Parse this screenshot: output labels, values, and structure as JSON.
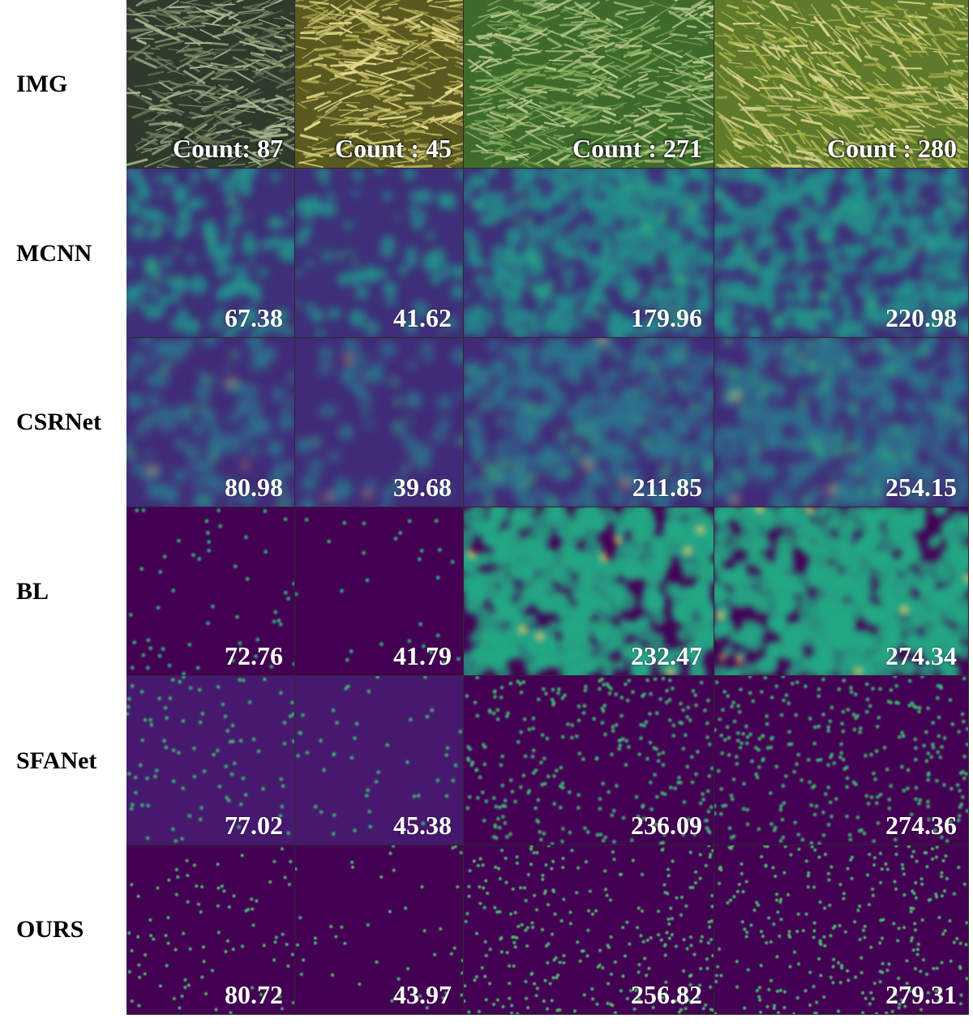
{
  "figure": {
    "columns": 4,
    "rows": [
      {
        "label": "IMG",
        "kind": "photo",
        "values": [
          "Count: 87",
          "Count : 45",
          "Count : 271",
          "Count : 280"
        ]
      },
      {
        "label": "MCNN",
        "kind": "density-blurry",
        "values": [
          "67.38",
          "41.62",
          "179.96",
          "220.98"
        ]
      },
      {
        "label": "CSRNet",
        "kind": "density-blob",
        "values": [
          "80.98",
          "39.68",
          "211.85",
          "254.15"
        ]
      },
      {
        "label": "BL",
        "kind": "density-mixed",
        "values": [
          "72.76",
          "41.79",
          "232.47",
          "274.34"
        ]
      },
      {
        "label": "SFANet",
        "kind": "density-points",
        "values": [
          "77.02",
          "45.38",
          "236.09",
          "274.36"
        ]
      },
      {
        "label": "OURS",
        "kind": "density-points-sharp",
        "values": [
          "80.72",
          "43.97",
          "256.82",
          "279.31"
        ]
      }
    ],
    "colors": {
      "viridis_dark": "#440154",
      "viridis_purple": "#3b2a73",
      "viridis_teal": "#21918c",
      "viridis_green": "#35b779",
      "viridis_yellow": "#fde725"
    },
    "photo_tones": [
      [
        "#2e3a2c",
        "#6f7f5e",
        "#a9b68f"
      ],
      [
        "#5a5a20",
        "#b3ac55",
        "#e4d98a"
      ],
      [
        "#3e6b2c",
        "#7fa85a",
        "#b9c98a"
      ],
      [
        "#5f7a2a",
        "#a9b24e",
        "#d9d48c"
      ]
    ]
  }
}
